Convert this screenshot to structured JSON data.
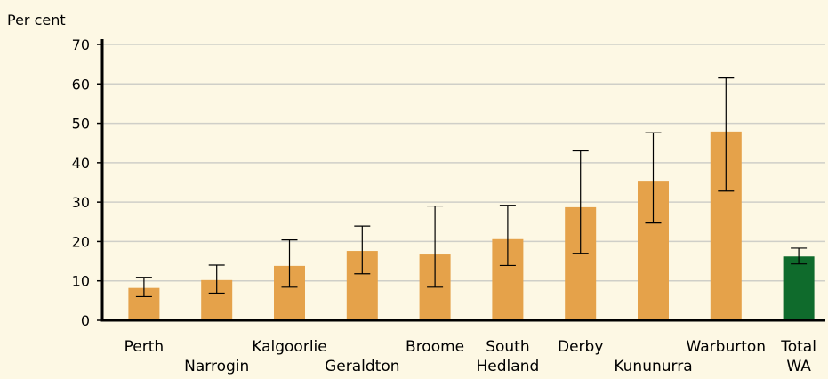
{
  "chart_data": {
    "type": "bar",
    "ylabel": "Per cent",
    "ylim": [
      0,
      70
    ],
    "yticks": [
      0,
      10,
      20,
      30,
      40,
      50,
      60,
      70
    ],
    "grid": true,
    "categories": [
      {
        "lines": [
          "Perth"
        ]
      },
      {
        "lines": [
          "Narrogin"
        ]
      },
      {
        "lines": [
          "Kalgoorlie"
        ]
      },
      {
        "lines": [
          "Geraldton"
        ]
      },
      {
        "lines": [
          "Broome"
        ]
      },
      {
        "lines": [
          "South",
          "Hedland"
        ]
      },
      {
        "lines": [
          "Derby"
        ]
      },
      {
        "lines": [
          "Kununurra"
        ]
      },
      {
        "lines": [
          "Warburton"
        ]
      },
      {
        "lines": [
          "Total",
          "WA"
        ]
      }
    ],
    "values": [
      8.2,
      10.2,
      13.8,
      17.6,
      16.7,
      20.6,
      28.7,
      35.2,
      47.9,
      16.2
    ],
    "error_low": [
      6.0,
      6.9,
      8.4,
      11.8,
      8.4,
      13.9,
      17.0,
      24.7,
      32.8,
      14.3
    ],
    "error_high": [
      10.9,
      14.0,
      20.4,
      23.9,
      29.0,
      29.2,
      43.0,
      47.6,
      61.5,
      18.3
    ],
    "colors": {
      "bar": "#e5a24a",
      "highlight": "#0f6b2c",
      "grid": "#cfcfc8",
      "axis": "#000000",
      "background": "#fdf8e4"
    },
    "highlight_index": 9
  }
}
